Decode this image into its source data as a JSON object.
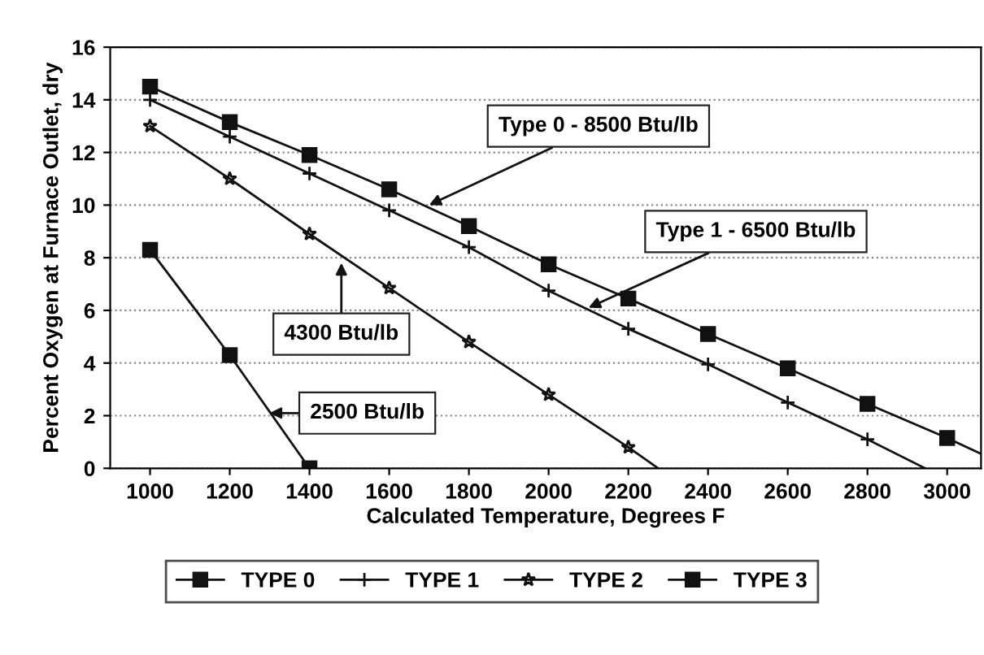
{
  "chart_data": {
    "type": "line",
    "xlabel": "Calculated Temperature, Degrees F",
    "ylabel": "Percent Oxygen at Furnace Outlet, dry",
    "xlim": [
      900,
      3085
    ],
    "ylim": [
      0,
      16
    ],
    "xticks": [
      1000,
      1200,
      1400,
      1600,
      1800,
      2000,
      2200,
      2400,
      2600,
      2800,
      3000
    ],
    "yticks": [
      0,
      2,
      4,
      6,
      8,
      10,
      12,
      14,
      16
    ],
    "grid": "y",
    "legend": "bottom",
    "series": [
      {
        "name": "TYPE 0",
        "color": "#111111",
        "marker": "square",
        "x": [
          1000,
          1200,
          1400,
          1600,
          1800,
          2000,
          2200,
          2400,
          2600,
          2800,
          3000
        ],
        "values": [
          14.5,
          13.15,
          11.9,
          10.6,
          9.2,
          7.75,
          6.45,
          5.1,
          3.8,
          2.45,
          1.15
        ]
      },
      {
        "name": "TYPE 1",
        "color": "#111111",
        "marker": "cross",
        "x": [
          1000,
          1200,
          1400,
          1600,
          1800,
          2000,
          2200,
          2400,
          2600,
          2800
        ],
        "values": [
          14.0,
          12.6,
          11.2,
          9.8,
          8.4,
          6.75,
          5.3,
          3.95,
          2.5,
          1.1
        ]
      },
      {
        "name": "TYPE 2",
        "color": "#111111",
        "marker": "star",
        "x": [
          1000,
          1200,
          1400,
          1600,
          1800,
          2000,
          2200
        ],
        "values": [
          13.0,
          11.0,
          8.9,
          6.85,
          4.8,
          2.8,
          0.8
        ]
      },
      {
        "name": "TYPE 3",
        "color": "#111111",
        "marker": "square",
        "x": [
          1000,
          1200,
          1400
        ],
        "values": [
          8.3,
          4.3,
          0
        ]
      },
      {
        "type": "line",
        "color": "#111111",
        "marker": "none",
        "x": [
          3000,
          3085
        ],
        "values": [
          1.15,
          0.55
        ]
      },
      {
        "type": "line",
        "color": "#111111",
        "marker": "none",
        "x": [
          2800,
          2945
        ],
        "values": [
          1.1,
          0
        ]
      },
      {
        "type": "line",
        "color": "#111111",
        "marker": "none",
        "x": [
          2200,
          2275
        ],
        "values": [
          0.8,
          0
        ]
      }
    ],
    "annotations": [
      {
        "text": "Type 0 - 8500 Btu/lb",
        "x": 1700,
        "y": 10.0
      },
      {
        "text": "Type 1 - 6500 Btu/lb",
        "x": 2100,
        "y": 6.1
      },
      {
        "text": "4300 Btu/lb",
        "x": 1480,
        "y": 7.8
      },
      {
        "text": "2500 Btu/lb",
        "x": 1300,
        "y": 2.1
      }
    ]
  }
}
